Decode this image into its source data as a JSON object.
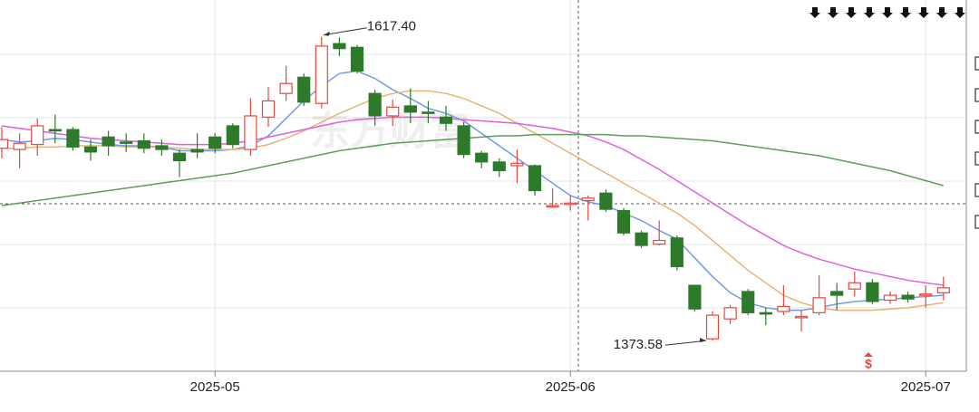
{
  "chart_data": {
    "type": "candlestick",
    "watermark": "东方财富",
    "annotations": [
      "1617.40",
      "1373.58"
    ],
    "categories": [
      null,
      null,
      null,
      null,
      null,
      null,
      null,
      null,
      null,
      null,
      null,
      null,
      "2025-05",
      null,
      null,
      null,
      null,
      null,
      null,
      null,
      null,
      null,
      null,
      null,
      null,
      null,
      null,
      null,
      null,
      null,
      null,
      null,
      "2025-06",
      null,
      null,
      null,
      null,
      null,
      null,
      null,
      null,
      null,
      null,
      null,
      null,
      null,
      null,
      null,
      null,
      null,
      null,
      null,
      "2025-07",
      null
    ],
    "open": [
      1528,
      1527,
      1531,
      1543,
      1543,
      1529,
      1537,
      1533,
      1534,
      1530,
      1524,
      1527,
      1537,
      1546,
      1527,
      1553,
      1572,
      1585,
      1564,
      1612,
      1609,
      1572,
      1554,
      1562,
      1557,
      1553,
      1546,
      1524,
      1517,
      1514,
      1514,
      1481,
      1483,
      1486,
      1492,
      1478,
      1460,
      1451,
      1456,
      1418,
      1375,
      1391,
      1413,
      1396,
      1397,
      1393,
      1396,
      1413,
      1415,
      1420,
      1406,
      1410,
      1410,
      1412
    ],
    "close": [
      1535,
      1532,
      1546,
      1542,
      1529,
      1525,
      1530,
      1532,
      1528,
      1527,
      1518,
      1525,
      1528,
      1531,
      1554,
      1566,
      1580,
      1565,
      1610,
      1608,
      1590,
      1554,
      1561,
      1557,
      1556,
      1548,
      1523,
      1517,
      1510,
      1516,
      1494,
      1482,
      1484,
      1488,
      1479,
      1460,
      1450,
      1454,
      1433,
      1399,
      1394,
      1400,
      1396,
      1395,
      1401,
      1393,
      1408,
      1410,
      1420,
      1405,
      1410,
      1407,
      1411,
      1416
    ],
    "high": [
      1545,
      1540,
      1552,
      1555,
      1545,
      1535,
      1542,
      1540,
      1540,
      1535,
      1527,
      1540,
      1540,
      1548,
      1568,
      1577,
      1594,
      1588,
      1617.4,
      1617,
      1611,
      1575,
      1567,
      1576,
      1566,
      1562,
      1549,
      1526,
      1520,
      1527,
      1515,
      1496,
      1490,
      1490,
      1495,
      1480,
      1462,
      1470,
      1458,
      1418,
      1397,
      1402,
      1415,
      1400,
      1418,
      1398,
      1426,
      1420,
      1429,
      1423,
      1413,
      1413,
      1418,
      1425
    ],
    "low": [
      1520,
      1512,
      1522,
      1532,
      1526,
      1518,
      1522,
      1525,
      1524,
      1522,
      1505,
      1520,
      1524,
      1528,
      1522,
      1545,
      1566,
      1562,
      1560,
      1602,
      1588,
      1546,
      1546,
      1548,
      1548,
      1542,
      1520,
      1512,
      1505,
      1500,
      1490,
      1480,
      1478,
      1470,
      1477,
      1458,
      1448,
      1450,
      1430,
      1397,
      1373.58,
      1387,
      1394,
      1386,
      1394,
      1381,
      1394,
      1398,
      1409,
      1403,
      1403,
      1404,
      1400,
      1406
    ],
    "up_color": "#e8473b",
    "down_color": "#2d7a2a",
    "ylim": [
      1349,
      1647
    ],
    "lines": [
      {
        "color": "#6f9be6",
        "values": [
          1535,
          1533,
          1534,
          1536,
          1535,
          1533,
          1531,
          1530,
          1530,
          1529,
          1526,
          1526,
          1526,
          1527,
          1530,
          1538,
          1552,
          1566,
          1578,
          1588,
          1590,
          1584,
          1575,
          1568,
          1560,
          1556,
          1550,
          1540,
          1530,
          1520,
          1510,
          1500,
          1490,
          1485,
          1482,
          1476,
          1470,
          1462,
          1455,
          1440,
          1425,
          1412,
          1404,
          1400,
          1398,
          1398,
          1400,
          1403,
          1405,
          1406,
          1407,
          1408,
          1409,
          1410
        ]
      },
      {
        "color": "#e6b277",
        "values": [
          1528,
          1528,
          1529,
          1529,
          1530,
          1530,
          1530,
          1529,
          1529,
          1529,
          1528,
          1527,
          1527,
          1527,
          1528,
          1531,
          1536,
          1542,
          1549,
          1556,
          1562,
          1568,
          1572,
          1574,
          1574,
          1572,
          1568,
          1562,
          1556,
          1548,
          1540,
          1532,
          1524,
          1516,
          1508,
          1500,
          1492,
          1484,
          1476,
          1466,
          1454,
          1442,
          1430,
          1420,
          1410,
          1404,
          1400,
          1398,
          1398,
          1398,
          1399,
          1400,
          1402,
          1404
        ]
      },
      {
        "color": "#e05ee0",
        "values": [
          1546,
          1544,
          1542,
          1540,
          1538,
          1536,
          1535,
          1534,
          1533,
          1532,
          1531,
          1531,
          1531,
          1532,
          1534,
          1537,
          1540,
          1543,
          1546,
          1549,
          1551,
          1552,
          1553,
          1553,
          1553,
          1552,
          1551,
          1550,
          1549,
          1548,
          1546,
          1544,
          1541,
          1538,
          1533,
          1527,
          1519,
          1511,
          1502,
          1493,
          1484,
          1475,
          1466,
          1458,
          1450,
          1444,
          1439,
          1435,
          1431,
          1428,
          1425,
          1422,
          1420,
          1418
        ]
      },
      {
        "color": "#5d9e5a",
        "values": [
          1482,
          1484,
          1486,
          1488,
          1490,
          1492,
          1494,
          1496,
          1498,
          1500,
          1502,
          1504,
          1506,
          1508,
          1511,
          1514,
          1517,
          1520,
          1523,
          1526,
          1528,
          1530,
          1532,
          1533,
          1534,
          1535,
          1536,
          1537,
          1538,
          1538,
          1539,
          1539,
          1539,
          1539,
          1539,
          1538,
          1538,
          1537,
          1536,
          1535,
          1534,
          1532,
          1530,
          1528,
          1526,
          1524,
          1522,
          1519,
          1516,
          1513,
          1510,
          1506,
          1502,
          1498
        ]
      }
    ]
  }
}
